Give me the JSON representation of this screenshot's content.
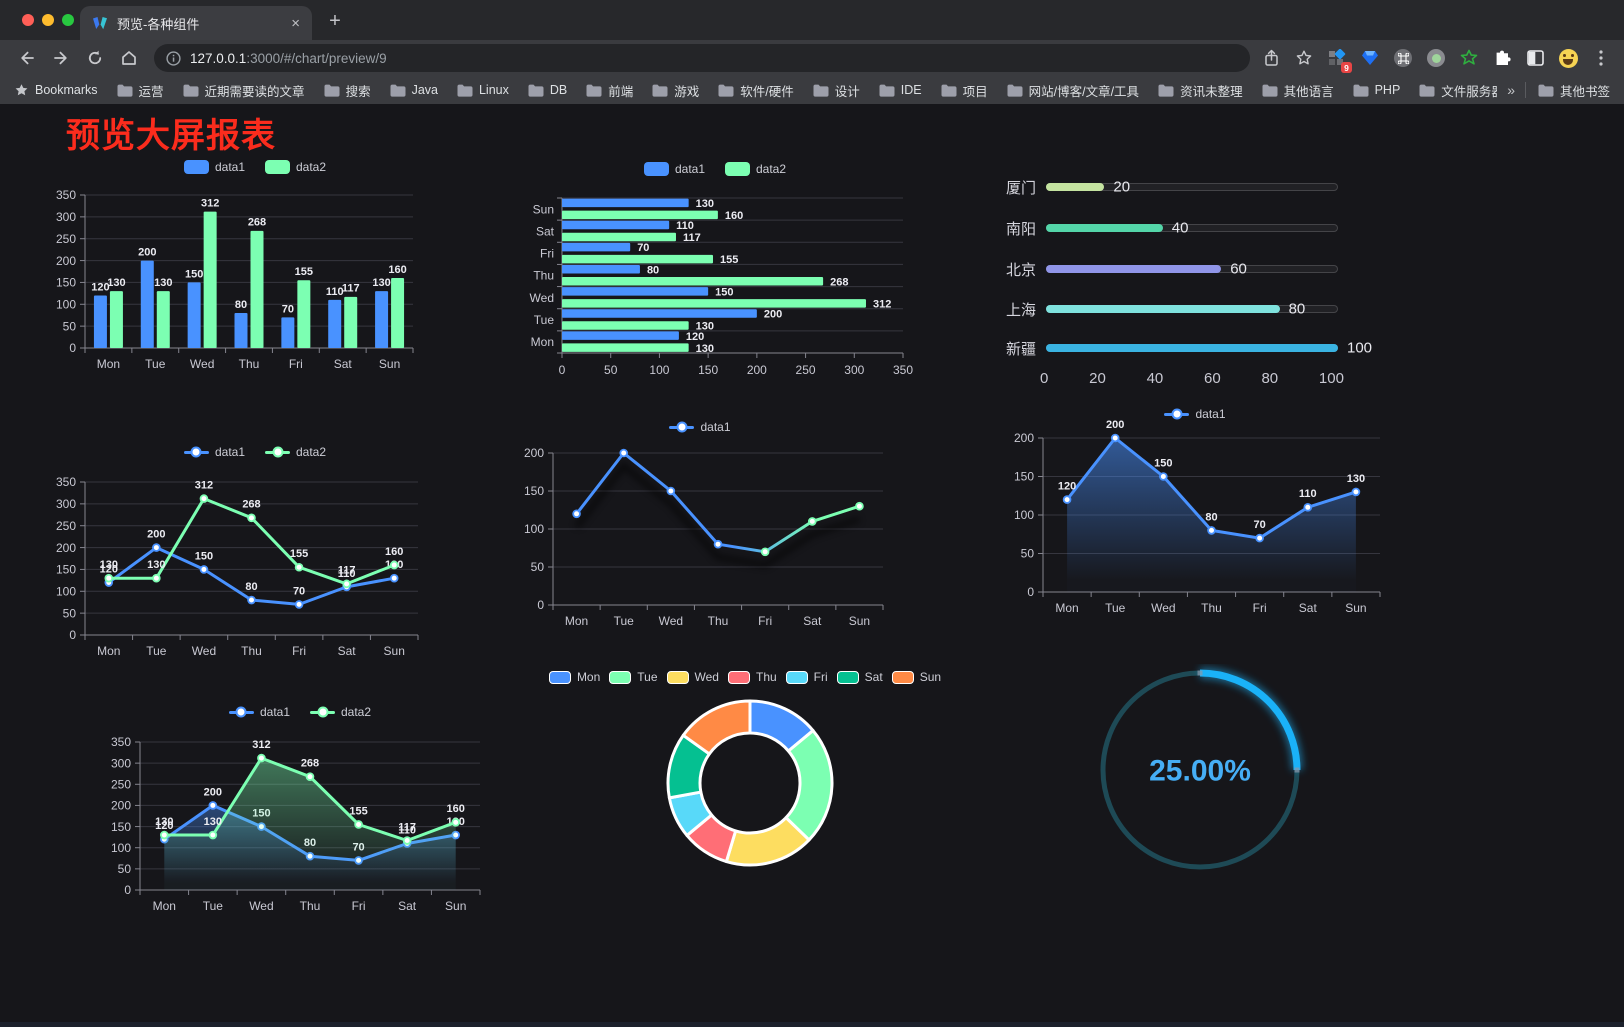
{
  "browser": {
    "tab": {
      "title": "预览-各种组件"
    },
    "url": {
      "host": "127.0.0.1",
      "path": ":3000/#/chart/preview/9"
    },
    "icons": {
      "new_tab": "+",
      "tab_close": "×",
      "overflow_chevron": "»",
      "ext_badge": "9"
    },
    "bookmarks_label": "Bookmarks",
    "bookmarks": [
      "运营",
      "近期需要读的文章",
      "搜索",
      "Java",
      "Linux",
      "DB",
      "前端",
      "游戏",
      "软件/硬件",
      "设计",
      "IDE",
      "项目",
      "网站/博客/文章/工具",
      "资讯未整理",
      "其他语言",
      "PHP",
      "文件服务器"
    ],
    "other_bookmarks": "其他书签"
  },
  "page": {
    "title": "预览大屏报表",
    "title_color": "#fb2c1d",
    "background": "#16161a"
  },
  "chart_data": [
    {
      "id": "bar1",
      "type": "bar",
      "legend_position": "top",
      "value_labels": true,
      "categories": [
        "Mon",
        "Tue",
        "Wed",
        "Thu",
        "Fri",
        "Sat",
        "Sun"
      ],
      "series": [
        {
          "name": "data1",
          "color": "#4992ff",
          "values": [
            120,
            200,
            150,
            80,
            70,
            110,
            130
          ]
        },
        {
          "name": "data2",
          "color": "#7cffb2",
          "values": [
            130,
            130,
            312,
            268,
            155,
            117,
            160
          ]
        }
      ],
      "ylim": [
        0,
        350
      ],
      "ytick": 50
    },
    {
      "id": "hbar",
      "type": "bar-horizontal",
      "legend_position": "top",
      "value_labels": true,
      "categories": [
        "Mon",
        "Tue",
        "Wed",
        "Thu",
        "Fri",
        "Sat",
        "Sun"
      ],
      "display_order": "Sun-top",
      "series": [
        {
          "name": "data1",
          "color": "#4992ff",
          "values": [
            120,
            200,
            150,
            80,
            70,
            110,
            130
          ]
        },
        {
          "name": "data2",
          "color": "#7cffb2",
          "values": [
            130,
            130,
            312,
            268,
            155,
            117,
            160
          ]
        }
      ],
      "xlim": [
        0,
        350
      ],
      "xtick": 50
    },
    {
      "id": "progress",
      "type": "progress-bars",
      "items": [
        {
          "label": "厦门",
          "value": 20,
          "color": "#c4e3a0"
        },
        {
          "label": "南阳",
          "value": 40,
          "color": "#54d6a9"
        },
        {
          "label": "北京",
          "value": 60,
          "color": "#9095e8"
        },
        {
          "label": "上海",
          "value": 80,
          "color": "#7fe2de"
        },
        {
          "label": "新疆",
          "value": 100,
          "color": "#3ab3e2"
        }
      ],
      "xlim": [
        0,
        100
      ],
      "xticks": [
        0,
        20,
        40,
        60,
        80,
        100
      ]
    },
    {
      "id": "line2",
      "type": "line",
      "legend_position": "top",
      "value_labels": true,
      "categories": [
        "Mon",
        "Tue",
        "Wed",
        "Thu",
        "Fri",
        "Sat",
        "Sun"
      ],
      "series": [
        {
          "name": "data1",
          "color": "#4992ff",
          "values": [
            120,
            200,
            150,
            80,
            70,
            110,
            130
          ]
        },
        {
          "name": "data2",
          "color": "#7cffb2",
          "values": [
            130,
            130,
            312,
            268,
            155,
            117,
            160
          ]
        }
      ],
      "ylim": [
        0,
        350
      ],
      "ytick": 50
    },
    {
      "id": "lineGrad",
      "type": "line",
      "legend_position": "top",
      "value_labels": false,
      "shadow": true,
      "categories": [
        "Mon",
        "Tue",
        "Wed",
        "Thu",
        "Fri",
        "Sat",
        "Sun"
      ],
      "series": [
        {
          "name": "data1",
          "colors": [
            "#4992ff",
            "#7cffb2"
          ],
          "values": [
            120,
            200,
            150,
            80,
            70,
            110,
            130
          ]
        }
      ],
      "ylim": [
        0,
        200
      ],
      "ytick": 50
    },
    {
      "id": "lineArea1",
      "type": "line",
      "legend_position": "top",
      "value_labels": true,
      "categories": [
        "Mon",
        "Tue",
        "Wed",
        "Thu",
        "Fri",
        "Sat",
        "Sun"
      ],
      "series": [
        {
          "name": "data1",
          "color": "#4992ff",
          "values": [
            120,
            200,
            150,
            80,
            70,
            110,
            130
          ],
          "area": true,
          "area_opacity": 0.55
        }
      ],
      "ylim": [
        0,
        200
      ],
      "ytick": 50
    },
    {
      "id": "lineArea2",
      "type": "line",
      "legend_position": "top",
      "value_labels": true,
      "categories": [
        "Mon",
        "Tue",
        "Wed",
        "Thu",
        "Fri",
        "Sat",
        "Sun"
      ],
      "series": [
        {
          "name": "data1",
          "color": "#4992ff",
          "values": [
            120,
            200,
            150,
            80,
            70,
            110,
            130
          ],
          "area": true,
          "area_opacity": 0.4
        },
        {
          "name": "data2",
          "color": "#7cffb2",
          "values": [
            130,
            130,
            312,
            268,
            155,
            117,
            160
          ],
          "area": true,
          "area_opacity": 0.42
        }
      ],
      "ylim": [
        0,
        350
      ],
      "ytick": 50
    },
    {
      "id": "donut",
      "type": "pie",
      "legend_position": "top",
      "categories": [
        "Mon",
        "Tue",
        "Wed",
        "Thu",
        "Fri",
        "Sat",
        "Sun"
      ],
      "values": [
        120,
        200,
        150,
        80,
        70,
        110,
        130
      ],
      "colors": [
        "#4992ff",
        "#7cffb2",
        "#fddd60",
        "#ff6e76",
        "#58d9f9",
        "#05c091",
        "#ff8a45"
      ],
      "border_color": "#ffffff"
    },
    {
      "id": "gauge",
      "type": "gauge",
      "value": 25,
      "max": 100,
      "label": "25.00%",
      "color": "#1ab2f8",
      "track_color": "#1e4a56",
      "text_color": "#46aef5"
    }
  ]
}
